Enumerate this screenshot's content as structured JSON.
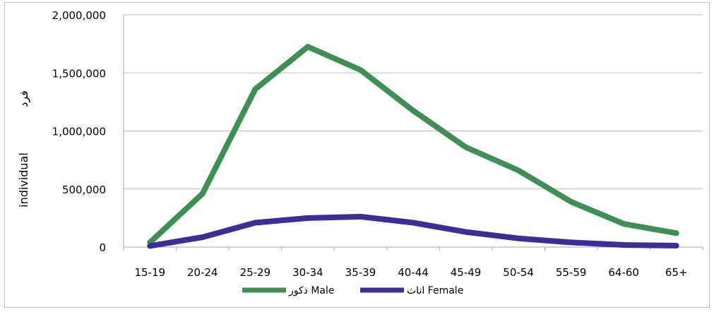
{
  "chart_data": {
    "type": "line",
    "categories": [
      "15-19",
      "20-24",
      "25-29",
      "30-34",
      "35-39",
      "40-44",
      "45-49",
      "50-54",
      "55-59",
      "64-60",
      "65+"
    ],
    "series": [
      {
        "name": "ذكور Male",
        "color": "#3e8e56",
        "values": [
          40000,
          460000,
          1360000,
          1725000,
          1525000,
          1175000,
          860000,
          660000,
          390000,
          200000,
          120000
        ]
      },
      {
        "name": "اناث Female",
        "color": "#3f2b9a",
        "values": [
          10000,
          85000,
          210000,
          250000,
          262000,
          210000,
          130000,
          75000,
          40000,
          18000,
          12000
        ]
      }
    ],
    "ylabel_en": "individual",
    "ylabel_ar": "فرد",
    "ylim": [
      0,
      2000000
    ],
    "yticks": [
      "0",
      "500,000",
      "1,000,000",
      "1,500,000",
      "2,000,000"
    ],
    "ytick_values": [
      0,
      500000,
      1000000,
      1500000,
      2000000
    ],
    "grid": true,
    "legend_position": "bottom"
  }
}
